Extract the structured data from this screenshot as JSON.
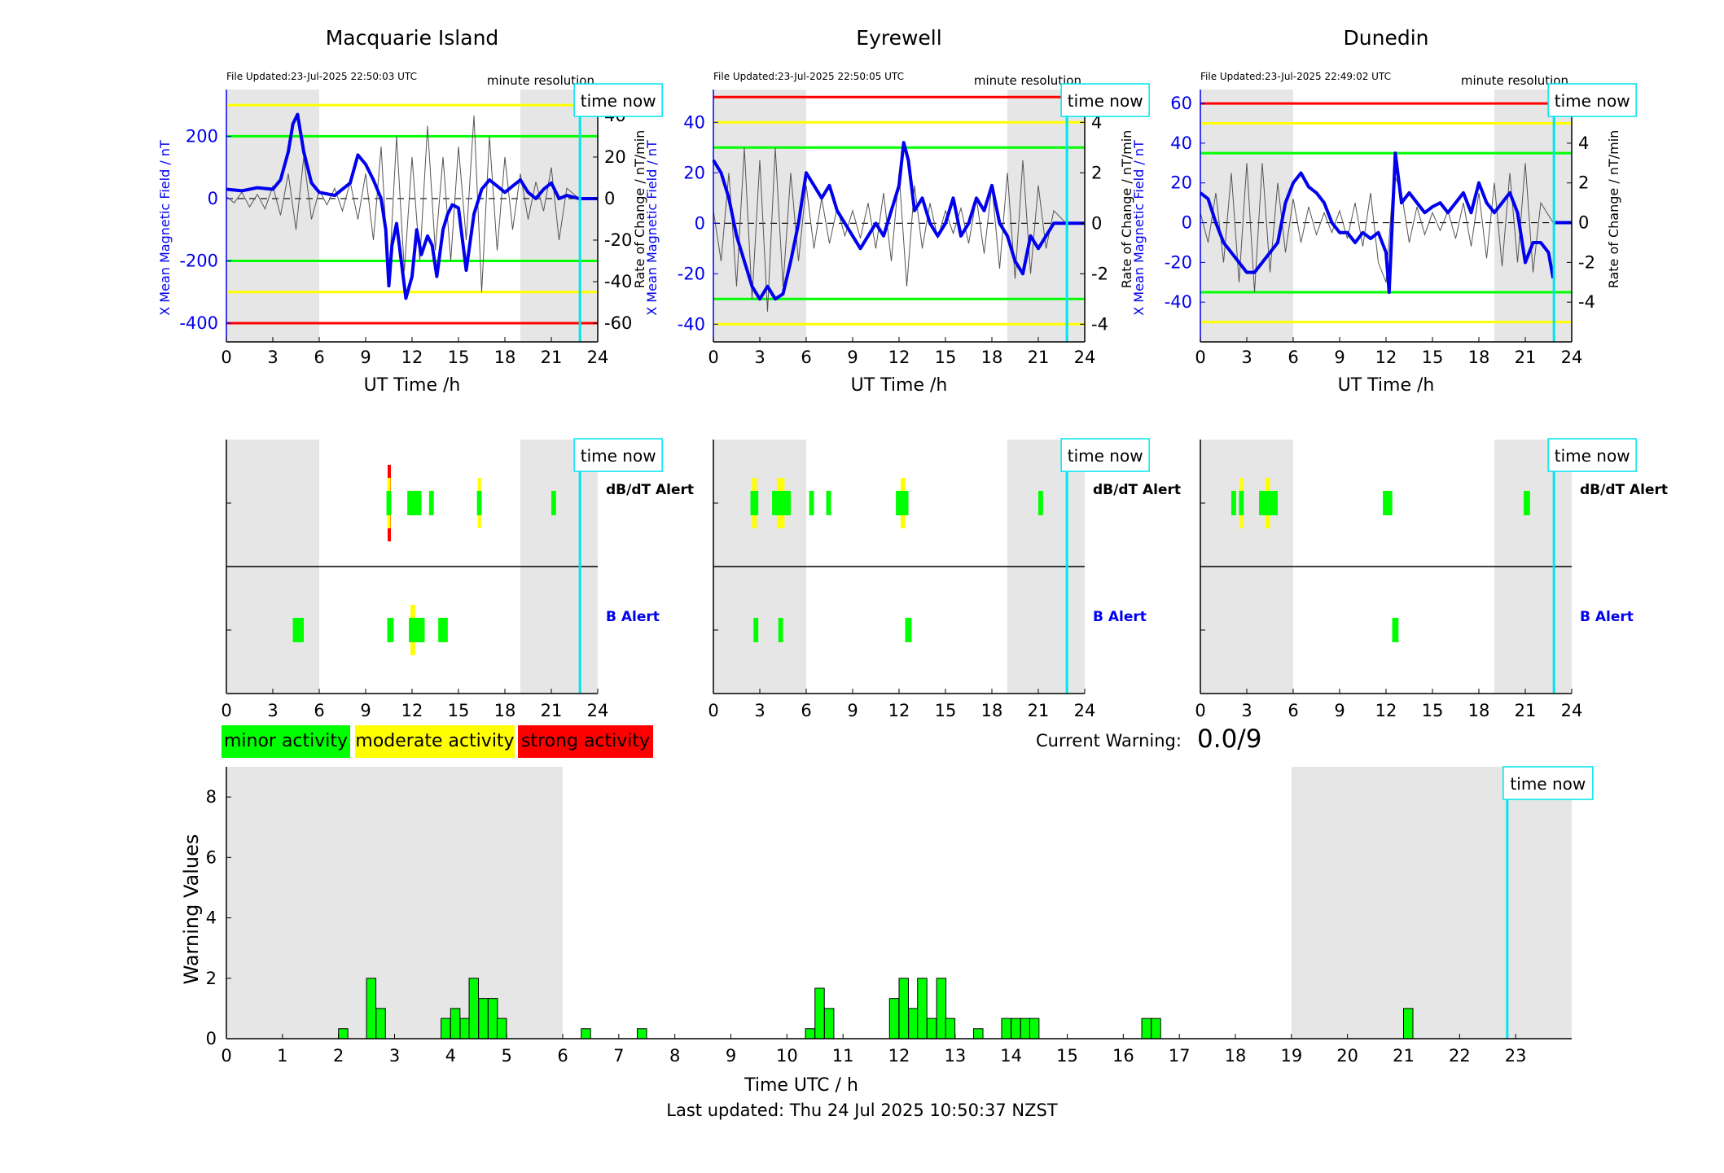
{
  "last_updated": "Last updated: Thu 24 Jul 2025 10:50:37 NZST",
  "current_warning": {
    "label": "Current Warning:",
    "value": "0.0/9"
  },
  "legend": [
    {
      "label": "minor activity",
      "color": "#00ff00"
    },
    {
      "label": "moderate activity",
      "color": "#ffff00"
    },
    {
      "label": "strong activity",
      "color": "#ff0000"
    }
  ],
  "colors": {
    "field": "#0000ee",
    "rate": "#555555",
    "time_now": "#00e5ee",
    "shade": "#e6e6e6",
    "green": "#00ff00",
    "yellow": "#ffff00",
    "red": "#ff0000"
  },
  "time_now_label": "time now",
  "resolution_label": "minute resolution",
  "time_now_hour": 22.85,
  "alerts": {
    "dbdt_label": "dB/dT Alert",
    "b_label": "B Alert"
  },
  "chart_data": [
    {
      "type": "line",
      "station": "Macquarie Island",
      "file_updated": "File Updated:23-Jul-2025 22:50:03 UTC",
      "xlabel": "UT Time /h",
      "ylabel": "X Mean Magnetic Field / nT",
      "y2label": "Rate of Change / nT/min",
      "xlim": [
        0,
        24
      ],
      "xticks": [
        0,
        3,
        6,
        9,
        12,
        15,
        18,
        21,
        24
      ],
      "ylim": [
        -460,
        350
      ],
      "yticks": [
        -400,
        -200,
        0,
        200
      ],
      "y2lim": [
        -69,
        52.5
      ],
      "y2ticks": [
        -60,
        -40,
        -20,
        0,
        20,
        40
      ],
      "thresholds": [
        {
          "y": 300,
          "color": "yellow"
        },
        {
          "y": 200,
          "color": "green"
        },
        {
          "y": -200,
          "color": "green"
        },
        {
          "y": -300,
          "color": "yellow"
        },
        {
          "y": -400,
          "color": "red"
        }
      ],
      "shaded_hours": [
        [
          0,
          6
        ],
        [
          19,
          24
        ]
      ],
      "field_series": {
        "x": [
          0,
          1,
          2,
          3,
          3.5,
          4,
          4.3,
          4.6,
          5,
          5.5,
          6,
          7,
          8,
          8.5,
          9,
          9.5,
          10,
          10.3,
          10.5,
          10.7,
          11,
          11.3,
          11.6,
          12,
          12.3,
          12.6,
          13,
          13.3,
          13.6,
          14,
          14.3,
          14.6,
          15,
          15.5,
          16,
          16.5,
          17,
          17.5,
          18,
          18.5,
          19,
          19.5,
          20,
          20.5,
          21,
          21.5,
          22,
          22.8
        ],
        "y": [
          30,
          25,
          35,
          30,
          60,
          150,
          240,
          270,
          150,
          50,
          20,
          10,
          50,
          140,
          110,
          60,
          0,
          -100,
          -280,
          -150,
          -80,
          -200,
          -320,
          -250,
          -100,
          -180,
          -120,
          -150,
          -250,
          -100,
          -50,
          -20,
          -30,
          -230,
          -50,
          30,
          60,
          40,
          20,
          40,
          60,
          20,
          0,
          30,
          50,
          0,
          10,
          0
        ]
      },
      "rate_series": {
        "x": [
          0,
          0.5,
          1,
          1.5,
          2,
          2.5,
          3,
          3.5,
          4,
          4.5,
          5,
          5.5,
          6,
          6.5,
          7,
          7.5,
          8,
          8.5,
          9,
          9.5,
          10,
          10.5,
          11,
          11.5,
          12,
          12.5,
          13,
          13.5,
          14,
          14.5,
          15,
          15.5,
          16,
          16.5,
          17,
          17.5,
          18,
          18.5,
          19,
          19.5,
          20,
          20.5,
          21,
          21.5,
          22,
          22.8
        ],
        "y": [
          1,
          -2,
          3,
          -4,
          2,
          -5,
          6,
          -8,
          12,
          -15,
          20,
          -10,
          4,
          -3,
          5,
          -6,
          8,
          -10,
          12,
          -20,
          25,
          -40,
          30,
          -35,
          20,
          -30,
          35,
          -25,
          20,
          -30,
          25,
          -20,
          40,
          -45,
          30,
          -25,
          20,
          -15,
          12,
          -10,
          8,
          -6,
          15,
          -20,
          5,
          0
        ]
      }
    },
    {
      "type": "line",
      "station": "Eyrewell",
      "file_updated": "File Updated:23-Jul-2025 22:50:05 UTC",
      "xlabel": "UT Time /h",
      "ylabel": "X Mean Magnetic Field / nT",
      "y2label": "Rate of Change / nT/min",
      "xlim": [
        0,
        24
      ],
      "xticks": [
        0,
        3,
        6,
        9,
        12,
        15,
        18,
        21,
        24
      ],
      "ylim": [
        -47,
        53
      ],
      "yticks": [
        -40,
        -20,
        0,
        20,
        40
      ],
      "y2lim": [
        -4.7,
        5.3
      ],
      "y2ticks": [
        -4,
        -2,
        0,
        2,
        4
      ],
      "thresholds": [
        {
          "y": 50,
          "color": "red"
        },
        {
          "y": 40,
          "color": "yellow"
        },
        {
          "y": 30,
          "color": "green"
        },
        {
          "y": -30,
          "color": "green"
        },
        {
          "y": -40,
          "color": "yellow"
        }
      ],
      "shaded_hours": [
        [
          0,
          6
        ],
        [
          19,
          24
        ]
      ],
      "field_series": {
        "x": [
          0,
          0.5,
          1,
          1.5,
          2,
          2.5,
          3,
          3.5,
          4,
          4.5,
          5,
          5.5,
          6,
          6.5,
          7,
          7.5,
          8,
          8.5,
          9,
          9.5,
          10,
          10.5,
          11,
          11.5,
          12,
          12.3,
          12.6,
          13,
          13.5,
          14,
          14.5,
          15,
          15.5,
          16,
          16.5,
          17,
          17.5,
          18,
          18.5,
          19,
          19.5,
          20,
          20.5,
          21,
          21.5,
          22,
          22.8
        ],
        "y": [
          25,
          20,
          10,
          -5,
          -15,
          -25,
          -30,
          -25,
          -30,
          -28,
          -15,
          0,
          20,
          15,
          10,
          15,
          5,
          0,
          -5,
          -10,
          -5,
          0,
          -5,
          5,
          15,
          32,
          25,
          5,
          10,
          0,
          -5,
          0,
          10,
          -5,
          0,
          10,
          5,
          15,
          0,
          -5,
          -15,
          -20,
          -5,
          -10,
          -5,
          0,
          0
        ]
      },
      "rate_series": {
        "x": [
          0,
          0.5,
          1,
          1.5,
          2,
          2.5,
          3,
          3.5,
          4,
          4.5,
          5,
          5.5,
          6,
          6.5,
          7,
          7.5,
          8,
          8.5,
          9,
          9.5,
          10,
          10.5,
          11,
          11.5,
          12,
          12.5,
          13,
          13.5,
          14,
          14.5,
          15,
          15.5,
          16,
          16.5,
          17,
          17.5,
          18,
          18.5,
          19,
          19.5,
          20,
          20.5,
          21,
          21.5,
          22,
          22.8
        ],
        "y": [
          0.5,
          -1.5,
          2,
          -2.5,
          3,
          -3,
          2.5,
          -3.5,
          3,
          -2.5,
          2,
          -1.5,
          1.5,
          -1,
          1,
          -0.8,
          0.6,
          -0.5,
          0.5,
          -0.6,
          0.8,
          -1,
          1.2,
          -1.5,
          2,
          -2.5,
          1.5,
          -1,
          0.8,
          -0.6,
          0.5,
          -0.4,
          0.6,
          -0.8,
          1,
          -1.2,
          1.5,
          -1.8,
          2,
          -2.2,
          2.5,
          -2,
          1.5,
          -1,
          0.5,
          0
        ]
      }
    },
    {
      "type": "line",
      "station": "Dunedin",
      "file_updated": "File Updated:23-Jul-2025 22:49:02 UTC",
      "xlabel": "UT Time /h",
      "ylabel": "X Mean Magnetic Field / nT",
      "y2label": "Rate of Change / nT/min",
      "xlim": [
        0,
        24
      ],
      "xticks": [
        0,
        3,
        6,
        9,
        12,
        15,
        18,
        21,
        24
      ],
      "ylim": [
        -60,
        67
      ],
      "yticks": [
        -40,
        -20,
        0,
        20,
        40,
        60
      ],
      "y2lim": [
        -6,
        6.7
      ],
      "y2ticks": [
        -4,
        -2,
        0,
        2,
        4,
        6
      ],
      "thresholds": [
        {
          "y": 60,
          "color": "red"
        },
        {
          "y": 50,
          "color": "yellow"
        },
        {
          "y": 35,
          "color": "green"
        },
        {
          "y": -35,
          "color": "green"
        },
        {
          "y": -50,
          "color": "yellow"
        }
      ],
      "shaded_hours": [
        [
          0,
          6
        ],
        [
          19,
          24
        ]
      ],
      "field_series": {
        "x": [
          0,
          0.5,
          1,
          1.5,
          2,
          2.5,
          3,
          3.5,
          4,
          4.5,
          5,
          5.5,
          6,
          6.5,
          7,
          7.5,
          8,
          8.5,
          9,
          9.5,
          10,
          10.5,
          11,
          11.5,
          12,
          12.2,
          12.6,
          13,
          13.5,
          14,
          14.5,
          15,
          15.5,
          16,
          16.5,
          17,
          17.5,
          18,
          18.5,
          19,
          19.5,
          20,
          20.5,
          21,
          21.5,
          22,
          22.5,
          22.8
        ],
        "y": [
          15,
          12,
          0,
          -10,
          -15,
          -20,
          -25,
          -25,
          -20,
          -15,
          -10,
          10,
          20,
          25,
          18,
          15,
          10,
          0,
          -5,
          -5,
          -10,
          -5,
          -8,
          -5,
          -15,
          -35,
          35,
          10,
          15,
          10,
          5,
          8,
          10,
          5,
          10,
          15,
          5,
          20,
          10,
          5,
          10,
          15,
          5,
          -20,
          -10,
          -10,
          -15,
          -28
        ]
      },
      "rate_series": {
        "x": [
          0,
          0.5,
          1,
          1.5,
          2,
          2.5,
          3,
          3.5,
          4,
          4.5,
          5,
          5.5,
          6,
          6.5,
          7,
          7.5,
          8,
          8.5,
          9,
          9.5,
          10,
          10.5,
          11,
          11.5,
          12,
          12.5,
          13,
          13.5,
          14,
          14.5,
          15,
          15.5,
          16,
          16.5,
          17,
          17.5,
          18,
          18.5,
          19,
          19.5,
          20,
          20.5,
          21,
          21.5,
          22,
          22.8
        ],
        "y": [
          0.5,
          -1,
          1.5,
          -2,
          2.5,
          -3,
          3,
          -3.5,
          3,
          -2.5,
          2,
          -1.5,
          1.2,
          -1,
          0.8,
          -0.6,
          0.5,
          -0.5,
          0.6,
          -0.8,
          1,
          -1.2,
          1.5,
          -2,
          -3,
          2.5,
          1.5,
          -1,
          0.8,
          -0.6,
          0.5,
          -0.4,
          0.6,
          -0.8,
          1,
          -1.2,
          1.5,
          -1.8,
          2,
          -2.2,
          2.5,
          -2,
          3,
          -2.5,
          1,
          0
        ]
      }
    },
    {
      "type": "timeline",
      "station": "Macquarie Island alerts",
      "xlim": [
        0,
        24
      ],
      "xticks": [
        0,
        3,
        6,
        9,
        12,
        15,
        18,
        21,
        24
      ],
      "shaded_hours": [
        [
          0,
          6
        ],
        [
          19,
          24
        ]
      ],
      "dbdt": [
        {
          "start": 10.35,
          "end": 10.65,
          "level": "green"
        },
        {
          "start": 10.4,
          "end": 10.6,
          "level": "yellow",
          "row": "mid"
        },
        {
          "start": 10.42,
          "end": 10.58,
          "level": "red",
          "row": "outer"
        },
        {
          "start": 11.7,
          "end": 12.6,
          "level": "green"
        },
        {
          "start": 13.1,
          "end": 13.4,
          "level": "green"
        },
        {
          "start": 16.2,
          "end": 16.5,
          "level": "green"
        },
        {
          "start": 16.25,
          "end": 16.45,
          "level": "yellow",
          "row": "mid"
        },
        {
          "start": 21.0,
          "end": 21.3,
          "level": "green"
        }
      ],
      "b": [
        {
          "start": 4.3,
          "end": 5.0,
          "level": "green"
        },
        {
          "start": 10.4,
          "end": 10.8,
          "level": "green"
        },
        {
          "start": 11.8,
          "end": 12.6,
          "level": "green"
        },
        {
          "start": 11.9,
          "end": 12.2,
          "level": "yellow",
          "row": "mid"
        },
        {
          "start": 12.6,
          "end": 12.8,
          "level": "green"
        },
        {
          "start": 13.7,
          "end": 14.3,
          "level": "green"
        }
      ]
    },
    {
      "type": "timeline",
      "station": "Eyrewell alerts",
      "xlim": [
        0,
        24
      ],
      "xticks": [
        0,
        3,
        6,
        9,
        12,
        15,
        18,
        21,
        24
      ],
      "shaded_hours": [
        [
          0,
          6
        ],
        [
          19,
          24
        ]
      ],
      "dbdt": [
        {
          "start": 2.4,
          "end": 2.9,
          "level": "green"
        },
        {
          "start": 2.5,
          "end": 2.8,
          "level": "yellow",
          "row": "mid"
        },
        {
          "start": 3.8,
          "end": 5.0,
          "level": "green"
        },
        {
          "start": 4.1,
          "end": 4.6,
          "level": "yellow",
          "row": "mid"
        },
        {
          "start": 6.2,
          "end": 6.5,
          "level": "green"
        },
        {
          "start": 7.3,
          "end": 7.6,
          "level": "green"
        },
        {
          "start": 11.8,
          "end": 12.6,
          "level": "green"
        },
        {
          "start": 12.1,
          "end": 12.4,
          "level": "yellow",
          "row": "mid"
        },
        {
          "start": 21.0,
          "end": 21.3,
          "level": "green"
        }
      ],
      "b": [
        {
          "start": 2.6,
          "end": 2.9,
          "level": "green"
        },
        {
          "start": 4.2,
          "end": 4.5,
          "level": "green"
        },
        {
          "start": 12.4,
          "end": 12.8,
          "level": "green"
        }
      ]
    },
    {
      "type": "timeline",
      "station": "Dunedin alerts",
      "xlim": [
        0,
        24
      ],
      "xticks": [
        0,
        3,
        6,
        9,
        12,
        15,
        18,
        21,
        24
      ],
      "shaded_hours": [
        [
          0,
          6
        ],
        [
          19,
          24
        ]
      ],
      "dbdt": [
        {
          "start": 2.0,
          "end": 2.3,
          "level": "green"
        },
        {
          "start": 2.5,
          "end": 2.8,
          "level": "green"
        },
        {
          "start": 2.55,
          "end": 2.75,
          "level": "yellow",
          "row": "mid"
        },
        {
          "start": 3.8,
          "end": 5.0,
          "level": "green"
        },
        {
          "start": 4.2,
          "end": 4.5,
          "level": "yellow",
          "row": "mid"
        },
        {
          "start": 11.8,
          "end": 12.4,
          "level": "green"
        },
        {
          "start": 20.9,
          "end": 21.3,
          "level": "green"
        }
      ],
      "b": [
        {
          "start": 12.4,
          "end": 12.8,
          "level": "green"
        }
      ]
    },
    {
      "type": "bar",
      "title": "",
      "xlabel": "Time UTC / h",
      "ylabel": "Warning Values",
      "xlim": [
        0,
        24
      ],
      "xticks": [
        0,
        1,
        2,
        3,
        4,
        5,
        6,
        7,
        8,
        9,
        10,
        11,
        12,
        13,
        14,
        15,
        16,
        17,
        18,
        19,
        20,
        21,
        22,
        23
      ],
      "ylim": [
        0,
        9
      ],
      "yticks": [
        0,
        2,
        4,
        6,
        8
      ],
      "shaded_hours": [
        [
          0,
          6
        ],
        [
          19,
          24
        ]
      ],
      "bin_width": 0.1667,
      "x": [
        2.0,
        2.5,
        2.67,
        3.83,
        4.0,
        4.17,
        4.33,
        4.5,
        4.67,
        4.83,
        6.33,
        7.33,
        10.33,
        10.5,
        10.67,
        11.83,
        12.0,
        12.17,
        12.33,
        12.5,
        12.67,
        12.83,
        13.33,
        13.83,
        14.0,
        14.17,
        14.33,
        16.33,
        16.5,
        21.0
      ],
      "values": [
        0.33,
        2,
        1,
        0.67,
        1,
        0.67,
        2,
        1.33,
        1.33,
        0.67,
        0.33,
        0.33,
        0.33,
        1.67,
        1,
        1.33,
        2,
        1,
        2,
        0.67,
        2,
        0.67,
        0.33,
        0.67,
        0.67,
        0.67,
        0.67,
        0.67,
        0.67,
        1
      ]
    }
  ]
}
